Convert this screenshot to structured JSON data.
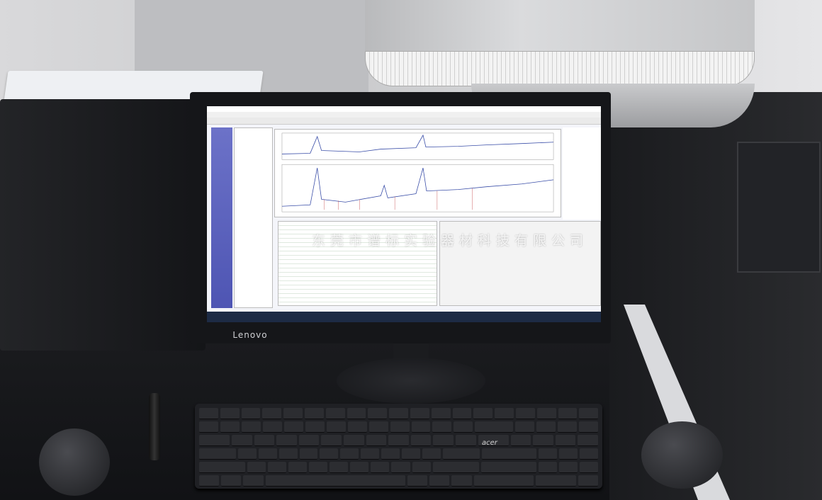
{
  "watermark": "东莞市谱标实验器材科技有限公司",
  "monitor": {
    "brand": "Lenovo"
  },
  "keyboard": {
    "brand": "acer"
  },
  "colors": {
    "screen_nav": "#5a60bd",
    "desk": "#151619",
    "chart_line": "#3a4ea8",
    "peak_marks": "#c0393b"
  }
}
